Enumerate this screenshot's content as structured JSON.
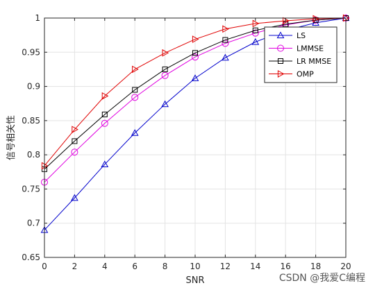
{
  "chart_data": {
    "type": "line",
    "title": "",
    "xlabel": "SNR",
    "ylabel": "信号相关性",
    "xlim": [
      0,
      20
    ],
    "ylim": [
      0.65,
      1
    ],
    "x": [
      0,
      2,
      4,
      6,
      8,
      10,
      12,
      14,
      16,
      18,
      20
    ],
    "xticks": [
      "0",
      "2",
      "4",
      "6",
      "8",
      "10",
      "12",
      "14",
      "16",
      "18",
      "20"
    ],
    "yticks": [
      "0.65",
      "0.7",
      "0.75",
      "0.8",
      "0.85",
      "0.9",
      "0.95",
      "1"
    ],
    "ytick_values": [
      0.65,
      0.7,
      0.75,
      0.8,
      0.85,
      0.9,
      0.95,
      1.0
    ],
    "grid": true,
    "legend_position": "top-right",
    "series": [
      {
        "name": "LS",
        "color": "#0000cc",
        "marker": "triangle-up",
        "values": [
          0.69,
          0.737,
          0.786,
          0.832,
          0.874,
          0.912,
          0.942,
          0.965,
          0.982,
          0.993,
          1.0
        ]
      },
      {
        "name": "LMMSE",
        "color": "#e000e0",
        "marker": "circle",
        "values": [
          0.76,
          0.804,
          0.846,
          0.884,
          0.916,
          0.943,
          0.963,
          0.978,
          0.99,
          0.997,
          1.0
        ]
      },
      {
        "name": "LR MMSE",
        "color": "#000000",
        "marker": "square",
        "values": [
          0.779,
          0.82,
          0.859,
          0.895,
          0.925,
          0.949,
          0.968,
          0.982,
          0.991,
          0.997,
          1.0
        ]
      },
      {
        "name": "OMP",
        "color": "#e00000",
        "marker": "triangle-right",
        "values": [
          0.784,
          0.837,
          0.886,
          0.925,
          0.949,
          0.969,
          0.984,
          0.992,
          0.996,
          0.999,
          1.0
        ]
      }
    ]
  },
  "watermark": "CSDN @我爱C编程"
}
